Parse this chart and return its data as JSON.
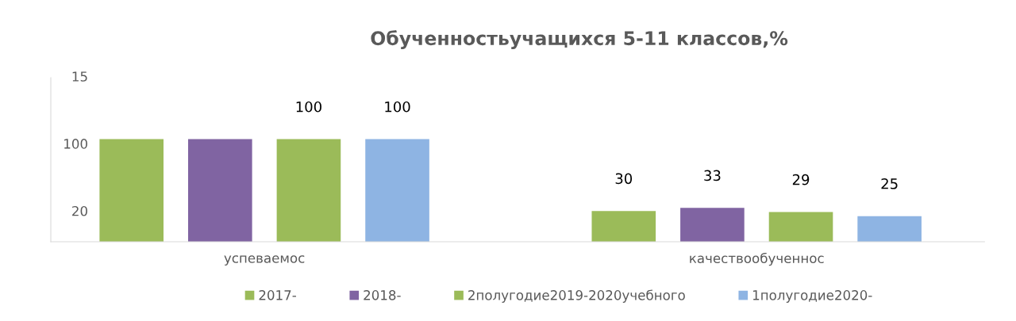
{
  "chart_data": {
    "type": "bar",
    "title": "Обученностьучащихся 5-11 классов,%",
    "categories": [
      "успеваемос",
      "качествообученнос"
    ],
    "series": [
      {
        "name": "2017-",
        "color": "#9bbb59",
        "values": [
          100,
          30
        ],
        "value_labels": [
          null,
          "30"
        ]
      },
      {
        "name": "2018-",
        "color": "#8064a2",
        "values": [
          100,
          33
        ],
        "value_labels": [
          null,
          "33"
        ]
      },
      {
        "name": "2полугодие2019-2020учебного",
        "color": "#9bbb59",
        "values": [
          100,
          29
        ],
        "value_labels": [
          "100",
          "29"
        ]
      },
      {
        "name": "1полугодие2020-",
        "color": "#8eb4e3",
        "values": [
          100,
          25
        ],
        "value_labels": [
          "100",
          "25"
        ]
      }
    ],
    "ylim": [
      0,
      160
    ],
    "tick_labels": "x",
    "legend": "bottom",
    "annotations": [
      "15",
      "100",
      "20"
    ]
  }
}
